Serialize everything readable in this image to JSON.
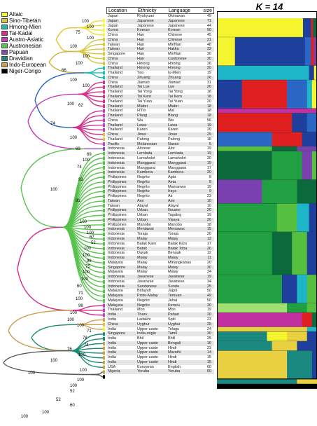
{
  "title": "K = 14",
  "legend": [
    {
      "name": "Altaic",
      "color": "#f7f73a"
    },
    {
      "name": "Sino-Tibetan",
      "color": "#d6c642"
    },
    {
      "name": "Hmong-Mien",
      "color": "#1dbcb0"
    },
    {
      "name": "Tai-Kadai",
      "color": "#d4308c"
    },
    {
      "name": "Austro-Asiatic",
      "color": "#c03cc0"
    },
    {
      "name": "Austronesian",
      "color": "#58c24e"
    },
    {
      "name": "Papuan",
      "color": "#7a4fb0"
    },
    {
      "name": "Dravidian",
      "color": "#1a8a70"
    },
    {
      "name": "Indo-European",
      "color": "#c8a050"
    },
    {
      "name": "Niger-Congo",
      "color": "#000000"
    }
  ],
  "table": {
    "headers": {
      "location": "Location",
      "ethnicity": "Ethnicity",
      "language": "Language",
      "size": "size"
    },
    "rows": [
      {
        "location": "Japan",
        "ethnicity": "Ryukyuan",
        "language": "Okinawan",
        "size": "49",
        "group": "Altaic"
      },
      {
        "location": "Japan",
        "ethnicity": "Japanese",
        "language": "Japanese",
        "size": "71",
        "group": "Altaic"
      },
      {
        "location": "Japan",
        "ethnicity": "Japanese",
        "language": "Japanese",
        "size": "44",
        "group": "Altaic"
      },
      {
        "location": "Korea",
        "ethnicity": "Korean",
        "language": "Korean",
        "size": "90",
        "group": "Altaic"
      },
      {
        "location": "China",
        "ethnicity": "Han",
        "language": "Chinese",
        "size": "45",
        "group": "Sino-Tibetan"
      },
      {
        "location": "China",
        "ethnicity": "Han",
        "language": "Chinese",
        "size": "21",
        "group": "Sino-Tibetan"
      },
      {
        "location": "Taiwan",
        "ethnicity": "Han",
        "language": "MinNan",
        "size": "48",
        "group": "Sino-Tibetan"
      },
      {
        "location": "Taiwan",
        "ethnicity": "Han",
        "language": "Hakka",
        "size": "32",
        "group": "Sino-Tibetan"
      },
      {
        "location": "Singapore",
        "ethnicity": "Han",
        "language": "MinNan",
        "size": "30",
        "group": "Sino-Tibetan"
      },
      {
        "location": "China",
        "ethnicity": "Han",
        "language": "Cantonese",
        "size": "30",
        "group": "Sino-Tibetan"
      },
      {
        "location": "China",
        "ethnicity": "Hmong",
        "language": "Hmong",
        "size": "26",
        "group": "Hmong-Mien"
      },
      {
        "location": "Thailand",
        "ethnicity": "Hmong",
        "language": "Hmong",
        "size": "20",
        "group": "Hmong-Mien"
      },
      {
        "location": "Thailand",
        "ethnicity": "Yao",
        "language": "Iu-Mien",
        "size": "19",
        "group": "Hmong-Mien"
      },
      {
        "location": "China",
        "ethnicity": "Zhuang",
        "language": "Zhuang",
        "size": "26",
        "group": "Tai-Kadai"
      },
      {
        "location": "China",
        "ethnicity": "Jiamao",
        "language": "Jiamao",
        "size": "31",
        "group": "Tai-Kadai"
      },
      {
        "location": "Thailand",
        "ethnicity": "Tai Lue",
        "language": "Lue",
        "size": "20",
        "group": "Tai-Kadai"
      },
      {
        "location": "Thailand",
        "ethnicity": "Tai Yong",
        "language": "Tai Yong",
        "size": "18",
        "group": "Tai-Kadai"
      },
      {
        "location": "Thailand",
        "ethnicity": "Tai Kern",
        "language": "Tai Kern",
        "size": "18",
        "group": "Tai-Kadai"
      },
      {
        "location": "Thailand",
        "ethnicity": "Tai Yuan",
        "language": "Tai Yuan",
        "size": "20",
        "group": "Tai-Kadai"
      },
      {
        "location": "Thailand",
        "ethnicity": "Mlabri",
        "language": "Mlabri",
        "size": "18",
        "group": "Austro-Asiatic"
      },
      {
        "location": "Thailand",
        "ethnicity": "H'Tin",
        "language": "Mal",
        "size": "18",
        "group": "Austro-Asiatic"
      },
      {
        "location": "Thailand",
        "ethnicity": "Plang",
        "language": "Blang",
        "size": "18",
        "group": "Austro-Asiatic"
      },
      {
        "location": "China",
        "ethnicity": "Wa",
        "language": "Wa",
        "size": "56",
        "group": "Austro-Asiatic"
      },
      {
        "location": "Thailand",
        "ethnicity": "Lawa",
        "language": "Lawa",
        "size": "19",
        "group": "Austro-Asiatic"
      },
      {
        "location": "Thailand",
        "ethnicity": "Karen",
        "language": "Karen",
        "size": "20",
        "group": "Sino-Tibetan"
      },
      {
        "location": "China",
        "ethnicity": "Jinuo",
        "language": "Jinuo",
        "size": "29",
        "group": "Sino-Tibetan"
      },
      {
        "location": "Thailand",
        "ethnicity": "Palong",
        "language": "Palong",
        "size": "18",
        "group": "Austro-Asiatic"
      },
      {
        "location": "Pacific",
        "ethnicity": "Melanesian",
        "language": "Nasioi",
        "size": "5",
        "group": "Papuan"
      },
      {
        "location": "Indonesia",
        "ethnicity": "Alorese",
        "language": "Alor",
        "size": "19",
        "group": "Austronesian"
      },
      {
        "location": "Indonesia",
        "ethnicity": "Lembata",
        "language": "Lembata",
        "size": "19",
        "group": "Austronesian"
      },
      {
        "location": "Indonesia",
        "ethnicity": "Lamaholot",
        "language": "Lamaholot",
        "size": "20",
        "group": "Austronesian"
      },
      {
        "location": "Indonesia",
        "ethnicity": "Manggarai",
        "language": "Manggarai",
        "size": "19",
        "group": "Austronesian"
      },
      {
        "location": "Indonesia",
        "ethnicity": "Manggarai",
        "language": "Manggarai",
        "size": "17",
        "group": "Austronesian"
      },
      {
        "location": "Indonesia",
        "ethnicity": "Kambera",
        "language": "Kambera",
        "size": "20",
        "group": "Austronesian"
      },
      {
        "location": "Philippines",
        "ethnicity": "Negrito",
        "language": "Agta",
        "size": "8",
        "group": "Austronesian"
      },
      {
        "location": "Philippines",
        "ethnicity": "Negrito",
        "language": "Aeta",
        "size": "8",
        "group": "Austronesian"
      },
      {
        "location": "Philippines",
        "ethnicity": "Negrito",
        "language": "Mamanwa",
        "size": "19",
        "group": "Austronesian"
      },
      {
        "location": "Philippines",
        "ethnicity": "Negrito",
        "language": "Iraya",
        "size": "9",
        "group": "Austronesian"
      },
      {
        "location": "Philippines",
        "ethnicity": "Negrito",
        "language": "Ati",
        "size": "23",
        "group": "Austronesian"
      },
      {
        "location": "Taiwan",
        "ethnicity": "Ami",
        "language": "Ami",
        "size": "10",
        "group": "Austronesian"
      },
      {
        "location": "Taiwan",
        "ethnicity": "Atayal",
        "language": "Atayal",
        "size": "10",
        "group": "Austronesian"
      },
      {
        "location": "Philippines",
        "ethnicity": "Urban",
        "language": "Ilocano",
        "size": "20",
        "group": "Austronesian"
      },
      {
        "location": "Philippines",
        "ethnicity": "Urban",
        "language": "Tagalog",
        "size": "19",
        "group": "Austronesian"
      },
      {
        "location": "Philippines",
        "ethnicity": "Urban",
        "language": "Visaya",
        "size": "20",
        "group": "Austronesian"
      },
      {
        "location": "Philippines",
        "ethnicity": "Manobo",
        "language": "Manobo",
        "size": "18",
        "group": "Austronesian"
      },
      {
        "location": "Indonesia",
        "ethnicity": "Mentawai",
        "language": "Mentawai",
        "size": "15",
        "group": "Austronesian"
      },
      {
        "location": "Indonesia",
        "ethnicity": "Toraja",
        "language": "Toraja",
        "size": "20",
        "group": "Austronesian"
      },
      {
        "location": "Indonesia",
        "ethnicity": "Malay",
        "language": "Malay",
        "size": "12",
        "group": "Austronesian"
      },
      {
        "location": "Indonesia",
        "ethnicity": "Batak Karo",
        "language": "Batak Karo",
        "size": "17",
        "group": "Austronesian"
      },
      {
        "location": "Indonesia",
        "ethnicity": "Batak",
        "language": "Batak Toba",
        "size": "20",
        "group": "Austronesian"
      },
      {
        "location": "Indonesia",
        "ethnicity": "Dayak",
        "language": "Benuak",
        "size": "12",
        "group": "Austronesian"
      },
      {
        "location": "Indonesia",
        "ethnicity": "Malay",
        "language": "Malay",
        "size": "11",
        "group": "Austronesian"
      },
      {
        "location": "Malaysia",
        "ethnicity": "Malay",
        "language": "Minangkabau",
        "size": "20",
        "group": "Austronesian"
      },
      {
        "location": "Singapore",
        "ethnicity": "Malay",
        "language": "Malay",
        "size": "30",
        "group": "Austronesian"
      },
      {
        "location": "Malaysia",
        "ethnicity": "Malay",
        "language": "Malay",
        "size": "34",
        "group": "Austronesian"
      },
      {
        "location": "Indonesia",
        "ethnicity": "Javanese",
        "language": "Javanese",
        "size": "19",
        "group": "Austronesian"
      },
      {
        "location": "Indonesia",
        "ethnicity": "Javanese",
        "language": "Javanese",
        "size": "34",
        "group": "Austronesian"
      },
      {
        "location": "Indonesia",
        "ethnicity": "Sundanese",
        "language": "Sunda",
        "size": "25",
        "group": "Austronesian"
      },
      {
        "location": "Malaysia",
        "ethnicity": "Bidayuh",
        "language": "Jagoi",
        "size": "50",
        "group": "Austronesian"
      },
      {
        "location": "Malaysia",
        "ethnicity": "Proto-Malay",
        "language": "Temuan",
        "size": "49",
        "group": "Austronesian"
      },
      {
        "location": "Malaysia",
        "ethnicity": "Negrito",
        "language": "Jehai",
        "size": "50",
        "group": "Austro-Asiatic"
      },
      {
        "location": "Malaysia",
        "ethnicity": "Negrito",
        "language": "Kensiu",
        "size": "30",
        "group": "Austro-Asiatic"
      },
      {
        "location": "Thailand",
        "ethnicity": "Mon",
        "language": "Mon",
        "size": "19",
        "group": "Austro-Asiatic"
      },
      {
        "location": "India",
        "ethnicity": "Tharu",
        "language": "Pahari",
        "size": "20",
        "group": "Indo-European"
      },
      {
        "location": "India",
        "ethnicity": "Ladakhi",
        "language": "Spiti",
        "size": "23",
        "group": "Sino-Tibetan"
      },
      {
        "location": "China",
        "ethnicity": "Uyghur",
        "language": "Uyghur",
        "size": "26",
        "group": "Altaic"
      },
      {
        "location": "India",
        "ethnicity": "Upper-caste",
        "language": "Telugu",
        "size": "24",
        "group": "Dravidian"
      },
      {
        "location": "Singapore",
        "ethnicity": "India origin",
        "language": "Tamil",
        "size": "30",
        "group": "Dravidian"
      },
      {
        "location": "India",
        "ethnicity": "Bhil",
        "language": "Bhili",
        "size": "25",
        "group": "Indo-European"
      },
      {
        "location": "India",
        "ethnicity": "Upper-caste",
        "language": "Bengali",
        "size": "16",
        "group": "Indo-European"
      },
      {
        "location": "India",
        "ethnicity": "Upper-caste",
        "language": "Hindi",
        "size": "23",
        "group": "Indo-European"
      },
      {
        "location": "India",
        "ethnicity": "Upper-caste",
        "language": "Marathi",
        "size": "14",
        "group": "Indo-European"
      },
      {
        "location": "India",
        "ethnicity": "Upper-caste",
        "language": "Hindi",
        "size": "15",
        "group": "Indo-European"
      },
      {
        "location": "India",
        "ethnicity": "Upper-caste",
        "language": "Hindi",
        "size": "15",
        "group": "Indo-European"
      },
      {
        "location": "USA",
        "ethnicity": "European",
        "language": "English",
        "size": "60",
        "group": "Indo-European"
      },
      {
        "location": "Nigeria",
        "ethnicity": "Yoruba",
        "language": "Yoruba",
        "size": "60",
        "group": "Niger-Congo"
      }
    ]
  },
  "bootstrap": [
    {
      "label": "100"
    },
    {
      "label": "100"
    },
    {
      "label": "75"
    },
    {
      "label": "100"
    },
    {
      "label": "100"
    },
    {
      "label": "100"
    },
    {
      "label": "100"
    },
    {
      "label": "66"
    },
    {
      "label": "100"
    },
    {
      "label": "100"
    },
    {
      "label": "100"
    },
    {
      "label": "62"
    },
    {
      "label": "74"
    },
    {
      "label": "100"
    },
    {
      "label": "69"
    },
    {
      "label": "69"
    },
    {
      "label": "100"
    },
    {
      "label": "74"
    },
    {
      "label": "93"
    },
    {
      "label": "100"
    },
    {
      "label": "81"
    },
    {
      "label": "100"
    },
    {
      "label": "100"
    },
    {
      "label": "100"
    },
    {
      "label": "67"
    },
    {
      "label": "52"
    },
    {
      "label": "100"
    },
    {
      "label": "100"
    },
    {
      "label": "96"
    },
    {
      "label": "75"
    },
    {
      "label": "100"
    },
    {
      "label": "100"
    },
    {
      "label": "60"
    },
    {
      "label": "71"
    },
    {
      "label": "100"
    },
    {
      "label": "98"
    },
    {
      "label": "100"
    },
    {
      "label": "100"
    },
    {
      "label": "100"
    },
    {
      "label": "71"
    },
    {
      "label": "78"
    },
    {
      "label": "74"
    },
    {
      "label": "76"
    },
    {
      "label": "100"
    },
    {
      "label": "100"
    },
    {
      "label": "100"
    },
    {
      "label": "100"
    },
    {
      "label": "100"
    },
    {
      "label": "100"
    },
    {
      "label": "52"
    },
    {
      "label": "52"
    },
    {
      "label": "60"
    },
    {
      "label": "100"
    },
    {
      "label": "100"
    }
  ],
  "structure_colors": [
    "#f5f52f",
    "#1f3f9c",
    "#2a66c4",
    "#e02020",
    "#1db5c8",
    "#20a040",
    "#0a6a3c",
    "#55c040",
    "#7a40b0",
    "#c030a0",
    "#e8d040",
    "#a0e070",
    "#1a8a80",
    "#000000"
  ],
  "structure_bands": [
    {
      "rows": 4,
      "parts": [
        [
          0,
          0.86
        ],
        [
          1,
          0.08
        ],
        [
          3,
          0.02
        ],
        [
          6,
          0.04
        ]
      ]
    },
    {
      "rows": 6,
      "parts": [
        [
          0,
          0.18
        ],
        [
          1,
          0.7
        ],
        [
          2,
          0.06
        ],
        [
          3,
          0.03
        ],
        [
          8,
          0.03
        ]
      ]
    },
    {
      "rows": 3,
      "parts": [
        [
          4,
          0.92
        ],
        [
          1,
          0.05
        ],
        [
          0,
          0.03
        ]
      ]
    },
    {
      "rows": 6,
      "parts": [
        [
          1,
          0.25
        ],
        [
          3,
          0.45
        ],
        [
          2,
          0.2
        ],
        [
          4,
          0.05
        ],
        [
          0,
          0.05
        ]
      ]
    },
    {
      "rows": 1,
      "parts": [
        [
          9,
          1.0
        ]
      ]
    },
    {
      "rows": 4,
      "parts": [
        [
          3,
          0.75
        ],
        [
          1,
          0.15
        ],
        [
          2,
          0.1
        ]
      ]
    },
    {
      "rows": 3,
      "parts": [
        [
          2,
          0.55
        ],
        [
          3,
          0.3
        ],
        [
          1,
          0.15
        ]
      ]
    },
    {
      "rows": 1,
      "parts": [
        [
          7,
          0.55
        ],
        [
          6,
          0.25
        ],
        [
          8,
          0.2
        ]
      ]
    },
    {
      "rows": 6,
      "parts": [
        [
          6,
          0.55
        ],
        [
          5,
          0.3
        ],
        [
          8,
          0.1
        ],
        [
          7,
          0.05
        ]
      ]
    },
    {
      "rows": 5,
      "parts": [
        [
          8,
          0.45
        ],
        [
          5,
          0.35
        ],
        [
          6,
          0.2
        ]
      ]
    },
    {
      "rows": 6,
      "parts": [
        [
          5,
          0.6
        ],
        [
          7,
          0.2
        ],
        [
          4,
          0.12
        ],
        [
          1,
          0.08
        ]
      ]
    },
    {
      "rows": 9,
      "parts": [
        [
          5,
          0.55
        ],
        [
          6,
          0.2
        ],
        [
          7,
          0.15
        ],
        [
          1,
          0.1
        ]
      ]
    },
    {
      "rows": 6,
      "parts": [
        [
          5,
          0.65
        ],
        [
          1,
          0.15
        ],
        [
          4,
          0.1
        ],
        [
          7,
          0.1
        ]
      ]
    },
    {
      "rows": 2,
      "parts": [
        [
          11,
          0.7
        ],
        [
          5,
          0.2
        ],
        [
          7,
          0.1
        ]
      ]
    },
    {
      "rows": 3,
      "parts": [
        [
          9,
          0.85
        ],
        [
          3,
          0.1
        ],
        [
          6,
          0.05
        ]
      ]
    },
    {
      "rows": 1,
      "parts": [
        [
          10,
          0.9
        ],
        [
          4,
          0.1
        ]
      ]
    },
    {
      "rows": 2,
      "parts": [
        [
          12,
          0.5
        ],
        [
          0,
          0.2
        ],
        [
          10,
          0.2
        ],
        [
          1,
          0.1
        ]
      ]
    },
    {
      "rows": 2,
      "parts": [
        [
          12,
          0.55
        ],
        [
          10,
          0.25
        ],
        [
          1,
          0.2
        ]
      ]
    },
    {
      "rows": 6,
      "parts": [
        [
          10,
          0.7
        ],
        [
          12,
          0.25
        ],
        [
          1,
          0.05
        ]
      ]
    },
    {
      "rows": 1,
      "parts": [
        [
          12,
          0.8
        ],
        [
          10,
          0.2
        ]
      ]
    },
    {
      "rows": 1,
      "parts": [
        [
          13,
          1.0
        ]
      ]
    }
  ]
}
